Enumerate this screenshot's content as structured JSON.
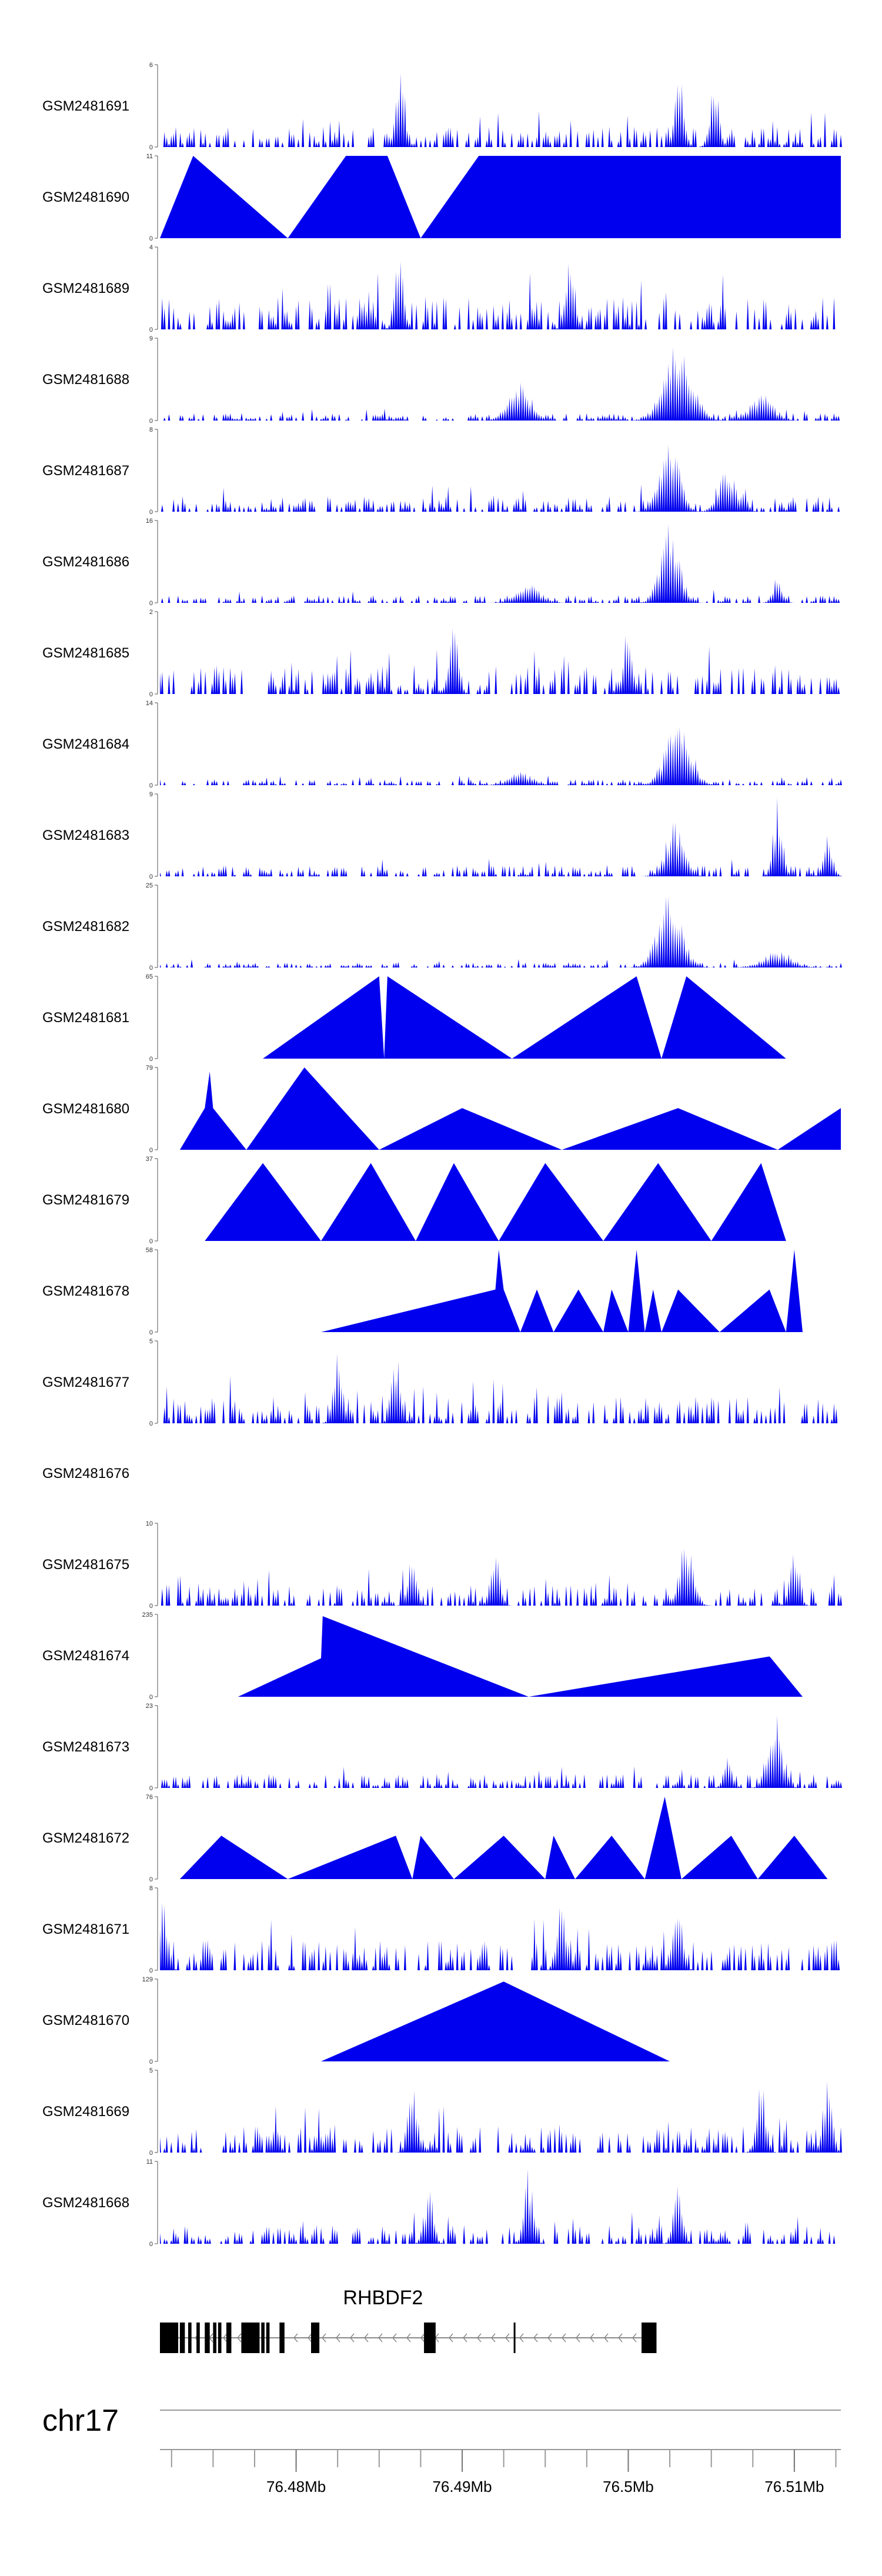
{
  "chart_data": {
    "type": "area",
    "chromosome": "chr17",
    "gene": {
      "name": "RHBDF2",
      "strand": "-",
      "start_mb": 76.4718,
      "end_mb": 76.5015,
      "exons_mb": [
        [
          76.4718,
          76.4729
        ],
        [
          76.473,
          76.4733
        ],
        [
          76.4735,
          76.4737
        ],
        [
          76.474,
          76.4742
        ],
        [
          76.4745,
          76.4748
        ],
        [
          76.475,
          76.4752
        ],
        [
          76.4753,
          76.4755
        ],
        [
          76.4758,
          76.4761
        ],
        [
          76.4767,
          76.4778
        ],
        [
          76.4779,
          76.4781
        ],
        [
          76.4782,
          76.4784
        ],
        [
          76.479,
          76.4793
        ],
        [
          76.4809,
          76.4814
        ],
        [
          76.4877,
          76.4884
        ],
        [
          76.4931,
          76.4932
        ],
        [
          76.5008,
          76.5017
        ]
      ]
    },
    "genome_axis": {
      "ticks_mb": [
        76.48,
        76.49,
        76.5,
        76.51
      ],
      "tick_labels": [
        "76.48Mb",
        "76.49Mb",
        "76.5Mb",
        "76.51Mb"
      ],
      "minor_tick_step_mb": 0.0025,
      "xlim_mb": [
        76.4718,
        76.5128
      ]
    },
    "tracks": [
      {
        "name": "GSM2481691",
        "ymax": 6,
        "pattern": "noise",
        "base": 1.5,
        "peaks": [
          [
            76.4863,
            5.8,
            0.0004
          ],
          [
            76.5031,
            5.8,
            0.0004
          ],
          [
            76.5052,
            5.2,
            0.0004
          ]
        ]
      },
      {
        "name": "GSM2481690",
        "ymax": 11,
        "pattern": "tri",
        "apexes": [
          [
            76.4718,
            0
          ],
          [
            76.4738,
            11
          ],
          [
            76.4795,
            0
          ],
          [
            76.483,
            11
          ],
          [
            76.4855,
            11
          ],
          [
            76.4875,
            0
          ],
          [
            76.491,
            11
          ],
          [
            76.4935,
            11
          ],
          [
            76.4945,
            11
          ],
          [
            76.496,
            11
          ],
          [
            76.4985,
            11
          ],
          [
            76.502,
            11
          ],
          [
            76.506,
            11
          ],
          [
            76.509,
            11
          ],
          [
            76.5128,
            11
          ]
        ]
      },
      {
        "name": "GSM2481689",
        "ymax": 4,
        "pattern": "noise",
        "base": 1.6,
        "peaks": [
          [
            76.4862,
            3.9,
            0.0004
          ],
          [
            76.4965,
            3.8,
            0.0004
          ]
        ]
      },
      {
        "name": "GSM2481688",
        "ymax": 9,
        "pattern": "noise",
        "base": 0.8,
        "peaks": [
          [
            76.503,
            8.7,
            0.0012
          ],
          [
            76.4935,
            4.2,
            0.001
          ],
          [
            76.508,
            3.0,
            0.001
          ]
        ]
      },
      {
        "name": "GSM2481687",
        "ymax": 8,
        "pattern": "noise",
        "base": 1.5,
        "peaks": [
          [
            76.5025,
            7.8,
            0.0008
          ],
          [
            76.506,
            4.5,
            0.0008
          ]
        ]
      },
      {
        "name": "GSM2481686",
        "ymax": 16,
        "pattern": "noise",
        "base": 1.5,
        "peaks": [
          [
            76.5025,
            15.5,
            0.0008
          ],
          [
            76.494,
            4.0,
            0.001
          ],
          [
            76.509,
            6.0,
            0.0004
          ]
        ]
      },
      {
        "name": "GSM2481685",
        "ymax": 2,
        "pattern": "noise",
        "base": 0.7,
        "peaks": [
          [
            76.4895,
            1.9,
            0.0004
          ],
          [
            76.5,
            1.8,
            0.0004
          ]
        ]
      },
      {
        "name": "GSM2481684",
        "ymax": 14,
        "pattern": "noise",
        "base": 1.0,
        "peaks": [
          [
            76.503,
            13.5,
            0.001
          ],
          [
            76.4935,
            2.5,
            0.001
          ]
        ]
      },
      {
        "name": "GSM2481683",
        "ymax": 9,
        "pattern": "noise",
        "base": 1.2,
        "peaks": [
          [
            76.509,
            8.7,
            0.0004
          ],
          [
            76.5028,
            6.0,
            0.0008
          ],
          [
            76.512,
            5.0,
            0.0004
          ]
        ]
      },
      {
        "name": "GSM2481682",
        "ymax": 25,
        "pattern": "noise",
        "base": 1.5,
        "peaks": [
          [
            76.5025,
            24.5,
            0.001
          ],
          [
            76.509,
            5.5,
            0.0012
          ]
        ]
      },
      {
        "name": "GSM2481681",
        "ymax": 65,
        "pattern": "tri",
        "apexes": [
          [
            76.478,
            0
          ],
          [
            76.485,
            65
          ],
          [
            76.4853,
            0
          ],
          [
            76.4855,
            65
          ],
          [
            76.493,
            0
          ],
          [
            76.5005,
            65
          ],
          [
            76.502,
            0
          ],
          [
            76.5035,
            65
          ],
          [
            76.5095,
            0
          ]
        ]
      },
      {
        "name": "GSM2481680",
        "ymax": 79,
        "pattern": "tri",
        "apexes": [
          [
            76.473,
            0
          ],
          [
            76.4745,
            40
          ],
          [
            76.4748,
            75
          ],
          [
            76.475,
            40
          ],
          [
            76.477,
            0
          ],
          [
            76.4805,
            79
          ],
          [
            76.485,
            0
          ],
          [
            76.49,
            40
          ],
          [
            76.496,
            0
          ],
          [
            76.503,
            40
          ],
          [
            76.509,
            0
          ],
          [
            76.5128,
            40
          ]
        ]
      },
      {
        "name": "GSM2481679",
        "ymax": 37,
        "pattern": "tri",
        "apexes": [
          [
            76.4745,
            0
          ],
          [
            76.478,
            35
          ],
          [
            76.4815,
            0
          ],
          [
            76.4845,
            35
          ],
          [
            76.4872,
            0
          ],
          [
            76.4895,
            35
          ],
          [
            76.4922,
            0
          ],
          [
            76.495,
            35
          ],
          [
            76.4985,
            0
          ],
          [
            76.5018,
            35
          ],
          [
            76.505,
            0
          ],
          [
            76.508,
            35
          ],
          [
            76.5095,
            0
          ]
        ]
      },
      {
        "name": "GSM2481678",
        "ymax": 58,
        "pattern": "tri",
        "apexes": [
          [
            76.4815,
            0
          ],
          [
            76.492,
            30
          ],
          [
            76.4922,
            58
          ],
          [
            76.4925,
            30
          ],
          [
            76.4935,
            0
          ],
          [
            76.4945,
            30
          ],
          [
            76.4955,
            0
          ],
          [
            76.497,
            30
          ],
          [
            76.4985,
            0
          ],
          [
            76.499,
            30
          ],
          [
            76.5,
            0
          ],
          [
            76.5005,
            58
          ],
          [
            76.501,
            0
          ],
          [
            76.5015,
            30
          ],
          [
            76.502,
            0
          ],
          [
            76.503,
            30
          ],
          [
            76.5055,
            0
          ],
          [
            76.5085,
            30
          ],
          [
            76.5095,
            0
          ],
          [
            76.51,
            58
          ],
          [
            76.5105,
            0
          ]
        ]
      },
      {
        "name": "GSM2481677",
        "ymax": 5,
        "pattern": "noise",
        "base": 1.6,
        "peaks": [
          [
            76.4825,
            4.8,
            0.0004
          ],
          [
            76.486,
            4.5,
            0.0004
          ]
        ]
      },
      {
        "name": "GSM2481676",
        "ymax": 0,
        "pattern": "empty"
      },
      {
        "name": "GSM2481675",
        "ymax": 10,
        "pattern": "noise",
        "base": 2.5,
        "peaks": [
          [
            76.5035,
            9.5,
            0.0006
          ],
          [
            76.492,
            7.0,
            0.0004
          ],
          [
            76.51,
            7.0,
            0.0004
          ],
          [
            76.487,
            6.5,
            0.0004
          ]
        ]
      },
      {
        "name": "GSM2481674",
        "ymax": 235,
        "pattern": "tri",
        "apexes": [
          [
            76.4765,
            0
          ],
          [
            76.4815,
            110
          ],
          [
            76.4816,
            230
          ],
          [
            76.494,
            0
          ],
          [
            76.5085,
            115
          ],
          [
            76.5086,
            110
          ],
          [
            76.5105,
            0
          ]
        ]
      },
      {
        "name": "GSM2481673",
        "ymax": 23,
        "pattern": "noise",
        "base": 4.0,
        "peaks": [
          [
            76.5088,
            22.5,
            0.0006
          ],
          [
            76.506,
            9.0,
            0.0004
          ]
        ]
      },
      {
        "name": "GSM2481672",
        "ymax": 76,
        "pattern": "tri",
        "apexes": [
          [
            76.473,
            0
          ],
          [
            76.4755,
            40
          ],
          [
            76.4795,
            0
          ],
          [
            76.486,
            40
          ],
          [
            76.487,
            0
          ],
          [
            76.4875,
            40
          ],
          [
            76.4895,
            0
          ],
          [
            76.4925,
            40
          ],
          [
            76.495,
            0
          ],
          [
            76.4955,
            40
          ],
          [
            76.4968,
            0
          ],
          [
            76.499,
            40
          ],
          [
            76.501,
            0
          ],
          [
            76.5022,
            76
          ],
          [
            76.5032,
            0
          ],
          [
            76.5062,
            40
          ],
          [
            76.5078,
            0
          ],
          [
            76.51,
            40
          ],
          [
            76.512,
            0
          ]
        ]
      },
      {
        "name": "GSM2481671",
        "ymax": 8,
        "pattern": "noise",
        "base": 3.0,
        "peaks": [
          [
            76.472,
            7.5,
            0.0004
          ],
          [
            76.496,
            7.0,
            0.0004
          ],
          [
            76.503,
            7.5,
            0.0004
          ]
        ]
      },
      {
        "name": "GSM2481670",
        "ymax": 129,
        "pattern": "tri",
        "apexes": [
          [
            76.4815,
            0
          ],
          [
            76.4925,
            125
          ],
          [
            76.5025,
            0
          ]
        ]
      },
      {
        "name": "GSM2481669",
        "ymax": 5,
        "pattern": "noise",
        "base": 1.6,
        "peaks": [
          [
            76.487,
            4.8,
            0.0004
          ],
          [
            76.508,
            4.5,
            0.0004
          ],
          [
            76.512,
            4.6,
            0.0004
          ]
        ]
      },
      {
        "name": "GSM2481668",
        "ymax": 11,
        "pattern": "noise",
        "base": 2.5,
        "peaks": [
          [
            76.494,
            10.5,
            0.0004
          ],
          [
            76.503,
            8.5,
            0.0004
          ],
          [
            76.488,
            8.0,
            0.0004
          ]
        ]
      }
    ],
    "colors": {
      "fill": "#0000ee",
      "axis": "#555555",
      "gene": "#000000",
      "intron": "#888888"
    }
  }
}
